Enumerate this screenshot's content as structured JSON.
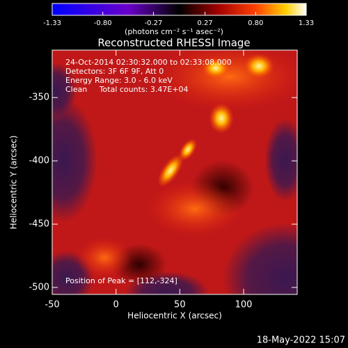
{
  "chart_data": {
    "type": "heatmap",
    "title": "Reconstructed RHESSI Image",
    "xlabel": "Heliocentric X (arcsec)",
    "ylabel": "Heliocentric Y (arcsec)",
    "xlim": [
      -50,
      142
    ],
    "xticks": [
      -50,
      0,
      50,
      100
    ],
    "ylim": [
      -505.5,
      -312.5
    ],
    "yticks": [
      -350,
      -400,
      -450,
      -500
    ],
    "clim": [
      -1.33,
      1.33
    ],
    "cticks": [
      -1.33,
      {
        "value": -0.8,
        "label": "-0.80"
      },
      -0.27,
      0.27,
      {
        "value": 0.8,
        "label": "0.80"
      },
      1.33
    ],
    "clabel": "(photons cm⁻² s⁻¹ asec⁻²)",
    "annotations": [
      "24-Oct-2014 02:30:32.000 to 02:33:08.000",
      "Detectors: 3F 6F 9F, Att 0",
      "Energy Range: 3.0 - 6.0 keV",
      "Clean     Total counts: 3.47E+04"
    ],
    "peak_label": "Position of Peak = [112,-324]",
    "timestamp": "18-May-2022 15:07"
  }
}
